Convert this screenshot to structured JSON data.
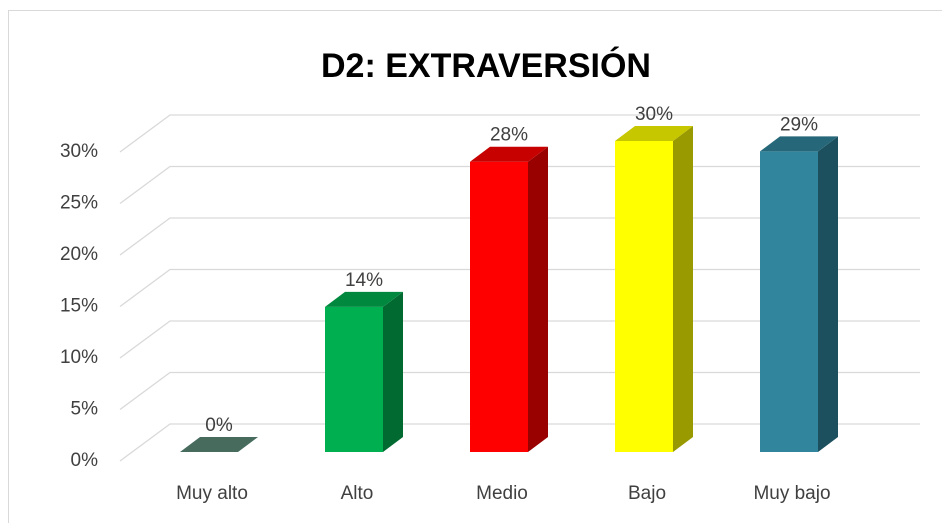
{
  "chart_data": {
    "type": "bar3d",
    "title": "D2: EXTRAVERSIÓN",
    "categories": [
      "Muy alto",
      "Alto",
      "Medio",
      "Bajo",
      "Muy bajo"
    ],
    "values": [
      0,
      14,
      28,
      30,
      29
    ],
    "value_labels": [
      "0%",
      "14%",
      "28%",
      "30%",
      "29%"
    ],
    "colors": [
      "#5b8a78",
      "#00b050",
      "#ff0000",
      "#ffff00",
      "#31859c"
    ],
    "ylim": [
      0,
      30
    ],
    "yticks": [
      {
        "value": 0,
        "label": "0%"
      },
      {
        "value": 5,
        "label": "5%"
      },
      {
        "value": 10,
        "label": "10%"
      },
      {
        "value": 15,
        "label": "15%"
      },
      {
        "value": 20,
        "label": "20%"
      },
      {
        "value": 25,
        "label": "25%"
      },
      {
        "value": 30,
        "label": "30%"
      }
    ],
    "grid": true
  }
}
